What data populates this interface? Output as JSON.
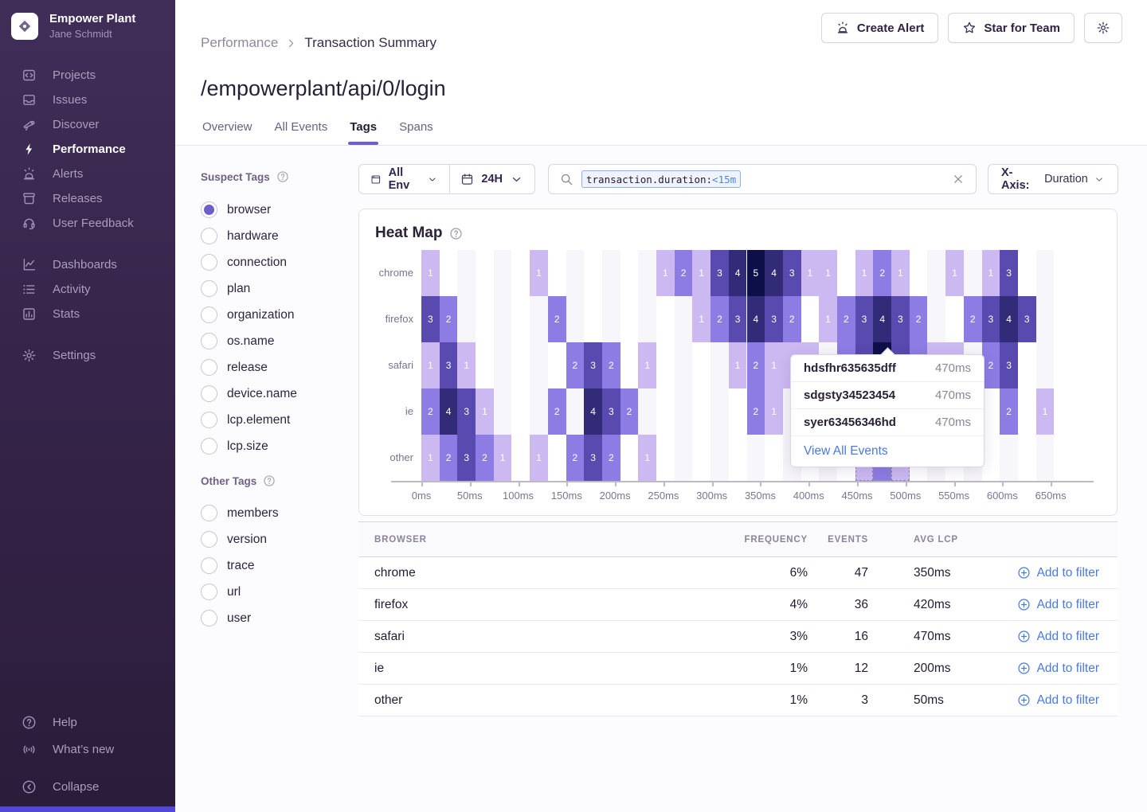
{
  "app": {
    "accent_color": "#6C5FC7",
    "link_color": "#4a79de"
  },
  "sidebar": {
    "org_name": "Empower Plant",
    "user_name": "Jane Schmidt",
    "groups": [
      {
        "items": [
          {
            "icon": "projects",
            "label": "Projects"
          },
          {
            "icon": "issues",
            "label": "Issues"
          },
          {
            "icon": "discover",
            "label": "Discover"
          },
          {
            "icon": "performance",
            "label": "Performance",
            "active": true
          },
          {
            "icon": "alerts",
            "label": "Alerts"
          },
          {
            "icon": "releases",
            "label": "Releases"
          },
          {
            "icon": "feedback",
            "label": "User Feedback"
          }
        ]
      },
      {
        "items": [
          {
            "icon": "dashboards",
            "label": "Dashboards"
          },
          {
            "icon": "activity",
            "label": "Activity"
          },
          {
            "icon": "stats",
            "label": "Stats"
          }
        ]
      },
      {
        "items": [
          {
            "icon": "settings",
            "label": "Settings"
          }
        ]
      }
    ],
    "footer": [
      {
        "icon": "help",
        "label": "Help"
      },
      {
        "icon": "whats-new",
        "label": "What’s new"
      },
      {
        "icon": "collapse",
        "label": "Collapse",
        "gap_above": true
      }
    ]
  },
  "header": {
    "breadcrumb": {
      "parent": "Performance",
      "current": "Transaction Summary"
    },
    "title": "/empowerplant/api/0/login",
    "tabs": [
      {
        "label": "Overview"
      },
      {
        "label": "All Events"
      },
      {
        "label": "Tags",
        "active": true
      },
      {
        "label": "Spans"
      }
    ],
    "actions": {
      "create_alert": "Create Alert",
      "star_for_team": "Star for Team"
    }
  },
  "tags_panel": {
    "suspect": {
      "heading": "Suspect Tags",
      "selected": "browser",
      "items": [
        "browser",
        "hardware",
        "connection",
        "plan",
        "organization",
        "os.name",
        "release",
        "device.name",
        "lcp.element",
        "lcp.size"
      ]
    },
    "other": {
      "heading": "Other Tags",
      "selected": null,
      "items": [
        "members",
        "version",
        "trace",
        "url",
        "user"
      ]
    }
  },
  "filters": {
    "environment": "All Env",
    "time_range": "24H",
    "search_token": {
      "key": "transaction.duration:",
      "value": "<15m"
    },
    "x_axis_label": "X-Axis:",
    "x_axis_value": "Duration"
  },
  "heatmap": {
    "title": "Heat Map",
    "type": "heatmap",
    "n_cols": 36,
    "x_ticks": [
      "0ms",
      "50ms",
      "100ms",
      "150ms",
      "200ms",
      "250ms",
      "300ms",
      "350ms",
      "400ms",
      "450ms",
      "500ms",
      "550ms",
      "600ms",
      "650ms"
    ],
    "level_colors": {
      "1": "#ccb9f2",
      "2": "#8d7ce4",
      "3": "#584aae",
      "4": "#322b78",
      "5": "#0d1048"
    },
    "stripe_color": "#f7f6fa",
    "rows": [
      {
        "label": "chrome",
        "cells": [
          [
            0,
            1
          ],
          [
            6,
            1
          ],
          [
            13,
            1
          ],
          [
            14,
            2
          ],
          [
            15,
            1
          ],
          [
            16,
            3
          ],
          [
            17,
            4
          ],
          [
            18,
            5
          ],
          [
            19,
            4
          ],
          [
            20,
            3
          ],
          [
            21,
            1
          ],
          [
            22,
            1
          ],
          [
            24,
            1
          ],
          [
            25,
            2
          ],
          [
            26,
            1
          ],
          [
            29,
            1
          ],
          [
            31,
            1
          ],
          [
            32,
            3
          ]
        ]
      },
      {
        "label": "firefox",
        "cells": [
          [
            0,
            3
          ],
          [
            1,
            2
          ],
          [
            7,
            2
          ],
          [
            15,
            1
          ],
          [
            16,
            2
          ],
          [
            17,
            3
          ],
          [
            18,
            4
          ],
          [
            19,
            3
          ],
          [
            20,
            2
          ],
          [
            22,
            1
          ],
          [
            23,
            2
          ],
          [
            24,
            3
          ],
          [
            25,
            4
          ],
          [
            26,
            3
          ],
          [
            27,
            2
          ],
          [
            30,
            2
          ],
          [
            31,
            3
          ],
          [
            32,
            4
          ],
          [
            33,
            3
          ]
        ]
      },
      {
        "label": "safari",
        "cells": [
          [
            0,
            1
          ],
          [
            1,
            3
          ],
          [
            2,
            1
          ],
          [
            8,
            2
          ],
          [
            9,
            3
          ],
          [
            10,
            2
          ],
          [
            12,
            1
          ],
          [
            17,
            1
          ],
          [
            18,
            2
          ],
          [
            19,
            1
          ],
          [
            20,
            1
          ],
          [
            21,
            1
          ],
          [
            23,
            2
          ],
          [
            24,
            3
          ],
          [
            25,
            5
          ],
          [
            26,
            3
          ],
          [
            27,
            2
          ],
          [
            28,
            1
          ],
          [
            29,
            1
          ],
          [
            31,
            2
          ],
          [
            32,
            3
          ]
        ]
      },
      {
        "label": "ie",
        "cells": [
          [
            0,
            2
          ],
          [
            1,
            4
          ],
          [
            2,
            3
          ],
          [
            3,
            1
          ],
          [
            7,
            2
          ],
          [
            9,
            4
          ],
          [
            10,
            3
          ],
          [
            11,
            2
          ],
          [
            18,
            2
          ],
          [
            19,
            1
          ],
          [
            32,
            2
          ],
          [
            34,
            1
          ]
        ]
      },
      {
        "label": "other",
        "cells": [
          [
            0,
            1
          ],
          [
            1,
            2
          ],
          [
            2,
            3
          ],
          [
            3,
            2
          ],
          [
            4,
            1
          ],
          [
            6,
            1
          ],
          [
            8,
            2
          ],
          [
            9,
            3
          ],
          [
            10,
            2
          ],
          [
            12,
            1
          ],
          [
            24,
            1,
            "dash"
          ],
          [
            25,
            2,
            "dash"
          ],
          [
            26,
            1,
            "dash"
          ]
        ]
      }
    ],
    "hovered_cell": {
      "row": "safari",
      "col": 25
    }
  },
  "tooltip": {
    "rows": [
      {
        "id": "hdsfhr635635dff",
        "duration": "470ms"
      },
      {
        "id": "sdgsty34523454",
        "duration": "470ms"
      },
      {
        "id": "syer63456346hd",
        "duration": "470ms"
      }
    ],
    "action": "View All Events"
  },
  "table": {
    "headers": [
      "BROWSER",
      "FREQUENCY",
      "EVENTS",
      "AVG LCP"
    ],
    "action_label": "Add to filter",
    "rows": [
      {
        "browser": "chrome",
        "frequency": "6%",
        "events": "47",
        "avg_lcp": "350ms"
      },
      {
        "browser": "firefox",
        "frequency": "4%",
        "events": "36",
        "avg_lcp": "420ms"
      },
      {
        "browser": "safari",
        "frequency": "3%",
        "events": "16",
        "avg_lcp": "470ms"
      },
      {
        "browser": "ie",
        "frequency": "1%",
        "events": "12",
        "avg_lcp": "200ms"
      },
      {
        "browser": "other",
        "frequency": "1%",
        "events": "3",
        "avg_lcp": "50ms"
      }
    ]
  }
}
